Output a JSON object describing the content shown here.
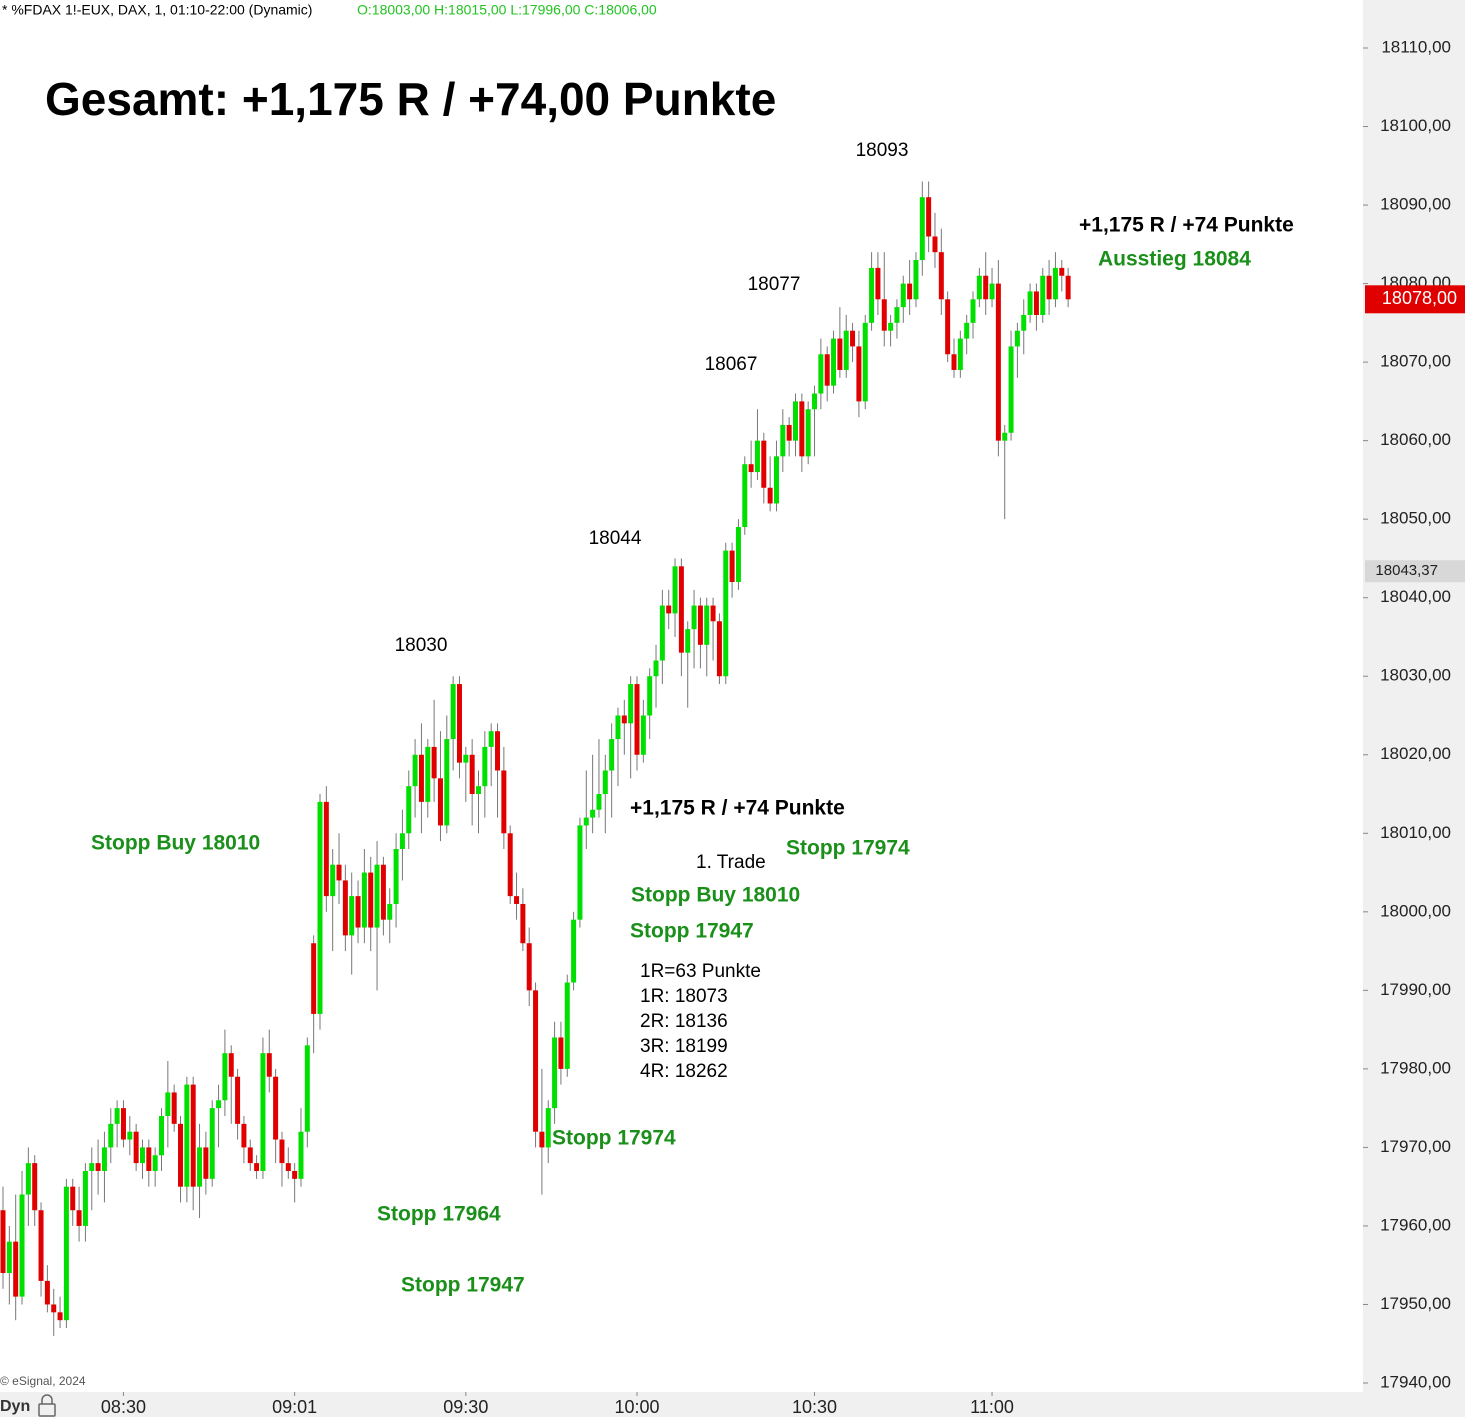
{
  "chart_data": {
    "type": "candlestick",
    "header": "* %FDAX 1!-EUX, DAX, 1, 01:10-22:00 (Dynamic)",
    "header_ohlc": "O:18003,00 H:18015,00 L:17996,00 C:18006,00",
    "up_color": "#00e000",
    "down_color": "#e00000",
    "ylim": [
      17940,
      18110
    ],
    "yticks": [
      {
        "value": 17940,
        "label": "17940,00"
      },
      {
        "value": 17950,
        "label": "17950,00"
      },
      {
        "value": 17960,
        "label": "17960,00"
      },
      {
        "value": 17970,
        "label": "17970,00"
      },
      {
        "value": 17980,
        "label": "17980,00"
      },
      {
        "value": 17990,
        "label": "17990,00"
      },
      {
        "value": 18000,
        "label": "18000,00"
      },
      {
        "value": 18010,
        "label": "18010,00"
      },
      {
        "value": 18020,
        "label": "18020,00"
      },
      {
        "value": 18030,
        "label": "18030,00"
      },
      {
        "value": 18040,
        "label": "18040,00"
      },
      {
        "value": 18050,
        "label": "18050,00"
      },
      {
        "value": 18060,
        "label": "18060,00"
      },
      {
        "value": 18070,
        "label": "18070,00"
      },
      {
        "value": 18080,
        "label": "18080,00"
      },
      {
        "value": 18090,
        "label": "18090,00"
      },
      {
        "value": 18100,
        "label": "18100,00"
      },
      {
        "value": 18110,
        "label": "18110,00"
      }
    ],
    "xticks": [
      {
        "value": 19,
        "label": "08:30"
      },
      {
        "value": 46,
        "label": "09:01"
      },
      {
        "value": 73,
        "label": "09:30"
      },
      {
        "value": 100,
        "label": "10:00"
      },
      {
        "value": 128,
        "label": "10:30"
      },
      {
        "value": 156,
        "label": "11:00"
      }
    ],
    "price_labels": [
      {
        "value": 18078,
        "label": "18078,00",
        "color": "#e00000"
      },
      {
        "value": 18043.37,
        "label": "18043,37",
        "color": "#d8d8d8"
      }
    ],
    "candles": [
      [
        17962,
        17965,
        17952,
        17954
      ],
      [
        17954,
        17960,
        17950,
        17958
      ],
      [
        17958,
        17964,
        17948,
        17951
      ],
      [
        17951,
        17967,
        17950,
        17964
      ],
      [
        17964,
        17970,
        17960,
        17968
      ],
      [
        17968,
        17969,
        17960,
        17962
      ],
      [
        17962,
        17963,
        17951,
        17953
      ],
      [
        17953,
        17955,
        17949,
        17950
      ],
      [
        17950,
        17952,
        17946,
        17949
      ],
      [
        17949,
        17951,
        17947,
        17948
      ],
      [
        17948,
        17966,
        17947,
        17965
      ],
      [
        17965,
        17966,
        17960,
        17962
      ],
      [
        17962,
        17965,
        17958,
        17960
      ],
      [
        17960,
        17968,
        17958,
        17967
      ],
      [
        17967,
        17970,
        17962,
        17968
      ],
      [
        17968,
        17971,
        17964,
        17967
      ],
      [
        17967,
        17972,
        17963,
        17970
      ],
      [
        17970,
        17975,
        17968,
        17973
      ],
      [
        17973,
        17976,
        17970,
        17975
      ],
      [
        17975,
        17976,
        17970,
        17971
      ],
      [
        17971,
        17974,
        17969,
        17972
      ],
      [
        17972,
        17973,
        17967,
        17968
      ],
      [
        17968,
        17971,
        17966,
        17970
      ],
      [
        17970,
        17971,
        17965,
        17967
      ],
      [
        17967,
        17970,
        17965,
        17969
      ],
      [
        17969,
        17975,
        17967,
        17974
      ],
      [
        17974,
        17981,
        17970,
        17977
      ],
      [
        17977,
        17978,
        17972,
        17973
      ],
      [
        17973,
        17974,
        17963,
        17965
      ],
      [
        17965,
        17979,
        17963,
        17978
      ],
      [
        17978,
        17979,
        17962,
        17965
      ],
      [
        17965,
        17973,
        17961,
        17970
      ],
      [
        17970,
        17972,
        17964,
        17966
      ],
      [
        17966,
        17976,
        17965,
        17975
      ],
      [
        17975,
        17978,
        17970,
        17976
      ],
      [
        17976,
        17985,
        17974,
        17982
      ],
      [
        17982,
        17983,
        17973,
        17979
      ],
      [
        17979,
        17980,
        17971,
        17973
      ],
      [
        17973,
        17974,
        17968,
        17970
      ],
      [
        17970,
        17971,
        17967,
        17968
      ],
      [
        17968,
        17969,
        17966,
        17967
      ],
      [
        17967,
        17984,
        17966,
        17982
      ],
      [
        17982,
        17985,
        17977,
        17979
      ],
      [
        17979,
        17980,
        17968,
        17971
      ],
      [
        17971,
        17972,
        17965,
        17968
      ],
      [
        17968,
        17970,
        17966,
        17967
      ],
      [
        17967,
        17968,
        17963,
        17966
      ],
      [
        17966,
        17975,
        17965,
        17972
      ],
      [
        17972,
        17984,
        17970,
        17983
      ],
      [
        17996,
        17997,
        17982,
        17987
      ],
      [
        17987,
        18015,
        17985,
        18014
      ],
      [
        18014,
        18016,
        18000,
        18002
      ],
      [
        18002,
        18008,
        17995,
        18006
      ],
      [
        18006,
        18010,
        18001,
        18004
      ],
      [
        18004,
        18006,
        17995,
        17997
      ],
      [
        17997,
        18005,
        17992,
        18002
      ],
      [
        18002,
        18004,
        17996,
        17998
      ],
      [
        17998,
        18008,
        17996,
        18005
      ],
      [
        18005,
        18007,
        17995,
        17998
      ],
      [
        17998,
        18009,
        17990,
        18006
      ],
      [
        18006,
        18007,
        17997,
        17999
      ],
      [
        17999,
        18003,
        17996,
        18001
      ],
      [
        18001,
        18010,
        17998,
        18008
      ],
      [
        18008,
        18013,
        18004,
        18010
      ],
      [
        18010,
        18018,
        18008,
        18016
      ],
      [
        18016,
        18022,
        18012,
        18020
      ],
      [
        18020,
        18024,
        18010,
        18014
      ],
      [
        18014,
        18022,
        18012,
        18021
      ],
      [
        18021,
        18027,
        18014,
        18017
      ],
      [
        18017,
        18023,
        18009,
        18011
      ],
      [
        18011,
        18025,
        18010,
        18022
      ],
      [
        18022,
        18030,
        18018,
        18029
      ],
      [
        18029,
        18030,
        18017,
        18019
      ],
      [
        18019,
        18021,
        18014,
        18020
      ],
      [
        18020,
        18022,
        18011,
        18015
      ],
      [
        18015,
        18018,
        18010,
        18016
      ],
      [
        18016,
        18023,
        18012,
        18021
      ],
      [
        18021,
        18024,
        18016,
        18023
      ],
      [
        18023,
        18024,
        18012,
        18018
      ],
      [
        18018,
        18021,
        18008,
        18010
      ],
      [
        18010,
        18011,
        18001,
        18002
      ],
      [
        18002,
        18005,
        17999,
        18001
      ],
      [
        18001,
        18003,
        17995,
        17996
      ],
      [
        17996,
        17998,
        17988,
        17990
      ],
      [
        17990,
        17991,
        17970,
        17972
      ],
      [
        17972,
        17980,
        17964,
        17970
      ],
      [
        17970,
        17976,
        17968,
        17975
      ],
      [
        17975,
        17986,
        17973,
        17984
      ],
      [
        17984,
        17986,
        17978,
        17980
      ],
      [
        17980,
        17992,
        17979,
        17991
      ],
      [
        17991,
        18000,
        17990,
        17999
      ],
      [
        17999,
        18012,
        17998,
        18011
      ],
      [
        18011,
        18018,
        18008,
        18012
      ],
      [
        18012,
        18020,
        18010,
        18013
      ],
      [
        18013,
        18022,
        18012,
        18015
      ],
      [
        18015,
        18020,
        18010,
        18018
      ],
      [
        18018,
        18024,
        18012,
        18022
      ],
      [
        18022,
        18026,
        18016,
        18025
      ],
      [
        18025,
        18027,
        18020,
        18024
      ],
      [
        18024,
        18030,
        18017,
        18029
      ],
      [
        18029,
        18030,
        18018,
        18020
      ],
      [
        18020,
        18027,
        18019,
        18025
      ],
      [
        18025,
        18031,
        18022,
        18030
      ],
      [
        18030,
        18034,
        18026,
        18032
      ],
      [
        18032,
        18041,
        18029,
        18039
      ],
      [
        18039,
        18041,
        18036,
        18038
      ],
      [
        18038,
        18045,
        18035,
        18044
      ],
      [
        18044,
        18045,
        18030,
        18033
      ],
      [
        18033,
        18037,
        18026,
        18036
      ],
      [
        18036,
        18041,
        18031,
        18039
      ],
      [
        18039,
        18040,
        18031,
        18034
      ],
      [
        18034,
        18040,
        18030,
        18039
      ],
      [
        18039,
        18040,
        18032,
        18037
      ],
      [
        18037,
        18038,
        18029,
        18030
      ],
      [
        18030,
        18047,
        18029,
        18046
      ],
      [
        18046,
        18047,
        18040,
        18042
      ],
      [
        18042,
        18050,
        18041,
        18049
      ],
      [
        18049,
        18058,
        18048,
        18057
      ],
      [
        18057,
        18060,
        18054,
        18056
      ],
      [
        18056,
        18064,
        18055,
        18060
      ],
      [
        18060,
        18061,
        18052,
        18054
      ],
      [
        18054,
        18058,
        18051,
        18052
      ],
      [
        18052,
        18060,
        18051,
        18058
      ],
      [
        18058,
        18064,
        18056,
        18062
      ],
      [
        18062,
        18063,
        18058,
        18060
      ],
      [
        18060,
        18066,
        18058,
        18065
      ],
      [
        18065,
        18066,
        18056,
        18058
      ],
      [
        18058,
        18065,
        18057,
        18064
      ],
      [
        18064,
        18067,
        18058,
        18066
      ],
      [
        18066,
        18073,
        18064,
        18071
      ],
      [
        18071,
        18072,
        18065,
        18067
      ],
      [
        18067,
        18074,
        18066,
        18073
      ],
      [
        18073,
        18077,
        18068,
        18069
      ],
      [
        18069,
        18076,
        18068,
        18074
      ],
      [
        18074,
        18075,
        18070,
        18072
      ],
      [
        18072,
        18074,
        18063,
        18065
      ],
      [
        18065,
        18076,
        18064,
        18075
      ],
      [
        18075,
        18084,
        18074,
        18082
      ],
      [
        18082,
        18084,
        18076,
        18078
      ],
      [
        18078,
        18084,
        18072,
        18074
      ],
      [
        18074,
        18076,
        18072,
        18075
      ],
      [
        18075,
        18078,
        18073,
        18077
      ],
      [
        18077,
        18081,
        18075,
        18080
      ],
      [
        18080,
        18083,
        18076,
        18078
      ],
      [
        18078,
        18084,
        18077,
        18083
      ],
      [
        18083,
        18093,
        18081,
        18091
      ],
      [
        18091,
        18093,
        18084,
        18086
      ],
      [
        18086,
        18089,
        18082,
        18084
      ],
      [
        18084,
        18087,
        18076,
        18078
      ],
      [
        18078,
        18079,
        18070,
        18071
      ],
      [
        18071,
        18073,
        18068,
        18069
      ],
      [
        18069,
        18074,
        18068,
        18073
      ],
      [
        18073,
        18076,
        18071,
        18075
      ],
      [
        18075,
        18079,
        18073,
        18078
      ],
      [
        18078,
        18082,
        18077,
        18081
      ],
      [
        18081,
        18084,
        18076,
        18078
      ],
      [
        18078,
        18082,
        18077,
        18080
      ],
      [
        18080,
        18083,
        18058,
        18060
      ],
      [
        18060,
        18062,
        18050,
        18061
      ],
      [
        18061,
        18074,
        18060,
        18072
      ],
      [
        18072,
        18075,
        18068,
        18074
      ],
      [
        18074,
        18078,
        18071,
        18076
      ],
      [
        18076,
        18080,
        18075,
        18079
      ],
      [
        18079,
        18080,
        18074,
        18076
      ],
      [
        18076,
        18082,
        18075,
        18081
      ],
      [
        18081,
        18083,
        18076,
        18078
      ],
      [
        18078,
        18084,
        18077,
        18082
      ],
      [
        18082,
        18083,
        18079,
        18081
      ],
      [
        18081,
        18082,
        18077,
        18078
      ]
    ],
    "annotations": [
      {
        "text": "Gesamt: +1,175 R / +74,00 Punkte",
        "color": "#000000"
      },
      {
        "text": "18093",
        "color": "#000000"
      },
      {
        "text": "18077",
        "color": "#000000"
      },
      {
        "text": "18067",
        "color": "#000000"
      },
      {
        "text": "18044",
        "color": "#000000"
      },
      {
        "text": "18030",
        "color": "#000000"
      },
      {
        "text": "+1,175 R / +74 Punkte",
        "color": "#000000"
      },
      {
        "text": "Ausstieg 18084",
        "color": "#1a8f1a"
      },
      {
        "text": "Stopp Buy 18010",
        "color": "#1a8f1a"
      },
      {
        "text": "+1,175 R / +74 Punkte",
        "color": "#000000"
      },
      {
        "text": "1. Trade",
        "color": "#000000"
      },
      {
        "text": "Stopp 17974",
        "color": "#1a8f1a"
      },
      {
        "text": "Stopp Buy 18010",
        "color": "#1a8f1a"
      },
      {
        "text": "Stopp 17947",
        "color": "#1a8f1a"
      },
      {
        "text": "1R=63 Punkte",
        "color": "#000000"
      },
      {
        "text": "1R: 18073",
        "color": "#000000"
      },
      {
        "text": "2R: 18136",
        "color": "#000000"
      },
      {
        "text": "3R: 18199",
        "color": "#000000"
      },
      {
        "text": "4R: 18262",
        "color": "#000000"
      },
      {
        "text": "Stopp 17974",
        "color": "#1a8f1a"
      },
      {
        "text": "Stopp 17964",
        "color": "#1a8f1a"
      },
      {
        "text": "Stopp 17947",
        "color": "#1a8f1a"
      }
    ],
    "copyright": "© eSignal, 2024",
    "footer_mode": "Dyn"
  }
}
